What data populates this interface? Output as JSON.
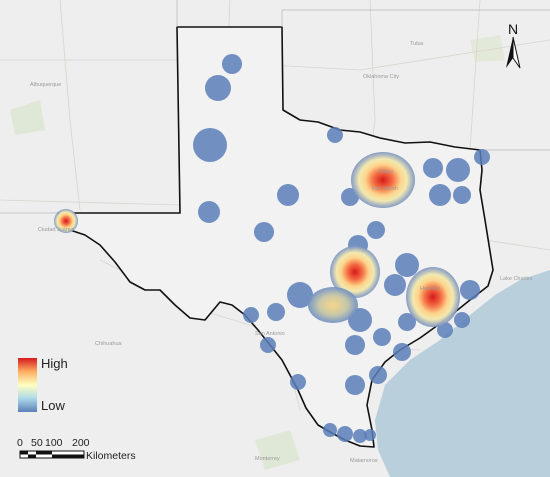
{
  "legend": {
    "high_label": "High",
    "low_label": "Low",
    "colors": [
      "#d7191c",
      "#fdae61",
      "#ffffbf",
      "#abd9e9",
      "#5b7fb8"
    ]
  },
  "scale_bar": {
    "ticks": [
      "0",
      "50",
      "100",
      "200"
    ],
    "unit": "Kilometers"
  },
  "north_arrow": {
    "label": "N"
  },
  "colors": {
    "water": "#b9d0dc",
    "land": "#eeeeee",
    "boundary": "#111111",
    "hotspot_low": "#5b7fb8",
    "hotspot_high": "#d7191c"
  }
}
